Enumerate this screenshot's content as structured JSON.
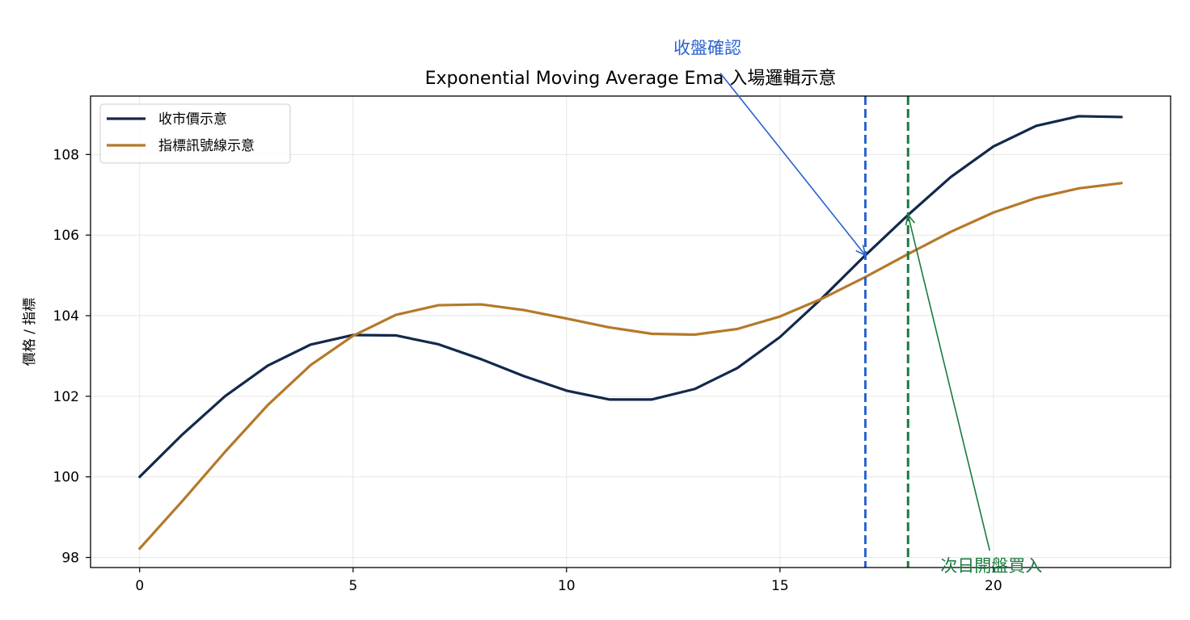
{
  "chart_data": {
    "type": "line",
    "title": "Exponential Moving Average Ema 入場邏輯示意",
    "xlabel": "",
    "ylabel": "價格 / 指標",
    "xlim": [
      -1.15,
      24.15
    ],
    "ylim": [
      97.75,
      109.45
    ],
    "xticks": [
      0,
      5,
      10,
      15,
      20
    ],
    "yticks": [
      98,
      100,
      102,
      104,
      106,
      108
    ],
    "grid": true,
    "legend_position": "top-left",
    "x": [
      0,
      1,
      2,
      3,
      4,
      5,
      6,
      7,
      8,
      9,
      10,
      11,
      12,
      13,
      14,
      15,
      16,
      17,
      18,
      19,
      20,
      21,
      22,
      23
    ],
    "series": [
      {
        "name": "收市價示意",
        "color": "#13294b",
        "values": [
          100.0,
          101.05,
          102.0,
          102.76,
          103.28,
          103.52,
          103.51,
          103.29,
          102.92,
          102.5,
          102.14,
          101.92,
          101.92,
          102.18,
          102.7,
          103.47,
          104.45,
          105.5,
          106.5,
          107.44,
          108.2,
          108.71,
          108.95,
          108.93
        ]
      },
      {
        "name": "指標訊號線示意",
        "color": "#b5792a",
        "values": [
          98.22,
          99.4,
          100.62,
          101.78,
          102.77,
          103.5,
          104.02,
          104.26,
          104.28,
          104.14,
          103.93,
          103.71,
          103.55,
          103.53,
          103.67,
          103.98,
          104.43,
          104.96,
          105.53,
          106.08,
          106.56,
          106.92,
          107.16,
          107.29
        ]
      }
    ],
    "vlines": [
      {
        "x": 17,
        "color": "#2a62d0",
        "style": "dashed"
      },
      {
        "x": 18,
        "color": "#1b7a3f",
        "style": "dashed"
      }
    ],
    "annotations": [
      {
        "text": "收盤確認",
        "color": "#2a62d0",
        "point": [
          17,
          105.5
        ],
        "text_pos": [
          13.3,
          110.5
        ]
      },
      {
        "text": "次日開盤買入",
        "color": "#1b7a3f",
        "point": [
          18,
          106.5
        ],
        "text_pos": [
          19.95,
          97.65
        ]
      }
    ]
  }
}
